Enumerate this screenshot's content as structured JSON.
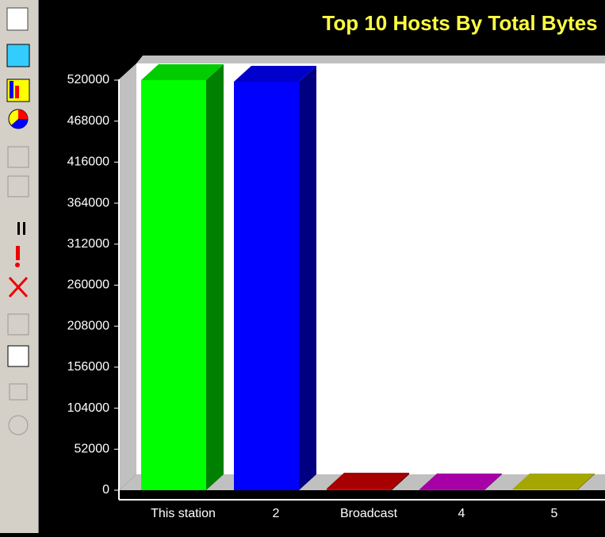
{
  "chart_data": {
    "type": "bar",
    "title": "Top 10 Hosts By Total Bytes",
    "categories": [
      "This station",
      "2",
      "Broadcast",
      "4",
      "5"
    ],
    "values": [
      520000,
      518000,
      2000,
      1000,
      1000
    ],
    "colors": [
      "#00ff00",
      "#0000ff",
      "#d00000",
      "#d000d0",
      "#d0d000"
    ],
    "ylim": [
      0,
      520000
    ],
    "yticks": [
      0,
      52000,
      104000,
      156000,
      208000,
      260000,
      312000,
      364000,
      416000,
      468000,
      520000
    ]
  }
}
